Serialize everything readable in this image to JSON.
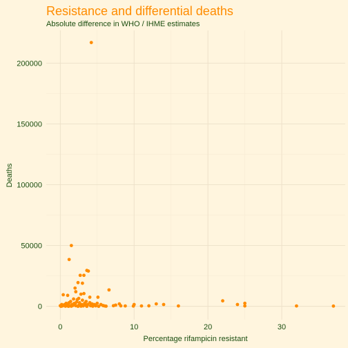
{
  "chart_data": {
    "type": "scatter",
    "title": "Resistance and differential deaths",
    "subtitle": "Absolute difference in WHO / IHME estimates",
    "xlabel": "Percentage rifampicin resistant",
    "ylabel": "Deaths",
    "xlim": [
      -1.9,
      38.6
    ],
    "ylim": [
      -11000,
      227000
    ],
    "x_ticks": [
      0,
      10,
      20,
      30
    ],
    "y_ticks": [
      0,
      50000,
      100000,
      150000,
      200000
    ],
    "x_tick_labels": [
      "0",
      "10",
      "20",
      "30"
    ],
    "y_tick_labels": [
      "0",
      "50000",
      "100000",
      "150000",
      "200000"
    ],
    "grid": true,
    "point_color": "#ff8c00",
    "points": [
      [
        4.2,
        217000
      ],
      [
        1.5,
        50000
      ],
      [
        1.2,
        38500
      ],
      [
        3.6,
        29500
      ],
      [
        3.8,
        29000
      ],
      [
        2.7,
        25500
      ],
      [
        3.2,
        25500
      ],
      [
        2.4,
        19500
      ],
      [
        3.0,
        19000
      ],
      [
        2.0,
        15000
      ],
      [
        6.6,
        13500
      ],
      [
        2.1,
        12000
      ],
      [
        2.8,
        10000
      ],
      [
        3.2,
        10500
      ],
      [
        0.4,
        9500
      ],
      [
        1.0,
        9000
      ],
      [
        4.0,
        7500
      ],
      [
        5.1,
        7500
      ],
      [
        2.5,
        6500
      ],
      [
        1.8,
        6000
      ],
      [
        2.3,
        5500
      ],
      [
        3.0,
        5000
      ],
      [
        22.0,
        4500
      ],
      [
        1.4,
        4000
      ],
      [
        2.2,
        3500
      ],
      [
        3.5,
        4000
      ],
      [
        4.0,
        3000
      ],
      [
        0.8,
        2500
      ],
      [
        1.2,
        3000
      ],
      [
        1.9,
        2500
      ],
      [
        2.6,
        3000
      ],
      [
        3.3,
        2500
      ],
      [
        4.3,
        2000
      ],
      [
        5.0,
        2500
      ],
      [
        25.0,
        2500
      ],
      [
        8.0,
        2000
      ],
      [
        13.0,
        2000
      ],
      [
        0.2,
        1500
      ],
      [
        0.6,
        1500
      ],
      [
        1.0,
        2000
      ],
      [
        1.6,
        1500
      ],
      [
        2.0,
        1800
      ],
      [
        2.9,
        1500
      ],
      [
        3.7,
        1500
      ],
      [
        4.6,
        1500
      ],
      [
        5.5,
        1500
      ],
      [
        7.5,
        1000
      ],
      [
        10.0,
        1500
      ],
      [
        24.0,
        1500
      ],
      [
        14.0,
        1500
      ],
      [
        0.0,
        500
      ],
      [
        0.3,
        300
      ],
      [
        0.5,
        800
      ],
      [
        0.9,
        600
      ],
      [
        1.3,
        400
      ],
      [
        1.7,
        700
      ],
      [
        2.1,
        500
      ],
      [
        2.5,
        800
      ],
      [
        3.1,
        300
      ],
      [
        3.4,
        900
      ],
      [
        4.1,
        500
      ],
      [
        4.8,
        400
      ],
      [
        5.8,
        600
      ],
      [
        6.0,
        300
      ],
      [
        7.2,
        500
      ],
      [
        8.2,
        400
      ],
      [
        8.8,
        300
      ],
      [
        9.9,
        200
      ],
      [
        11.0,
        300
      ],
      [
        12.0,
        400
      ],
      [
        16.0,
        300
      ],
      [
        25.0,
        300
      ],
      [
        32.0,
        300
      ],
      [
        37.0,
        200
      ],
      [
        0.1,
        0
      ],
      [
        0.7,
        100
      ],
      [
        1.1,
        0
      ],
      [
        1.5,
        100
      ],
      [
        2.4,
        0
      ],
      [
        2.8,
        100
      ],
      [
        3.6,
        0
      ],
      [
        4.4,
        100
      ],
      [
        5.2,
        0
      ],
      [
        6.2,
        100
      ]
    ]
  }
}
